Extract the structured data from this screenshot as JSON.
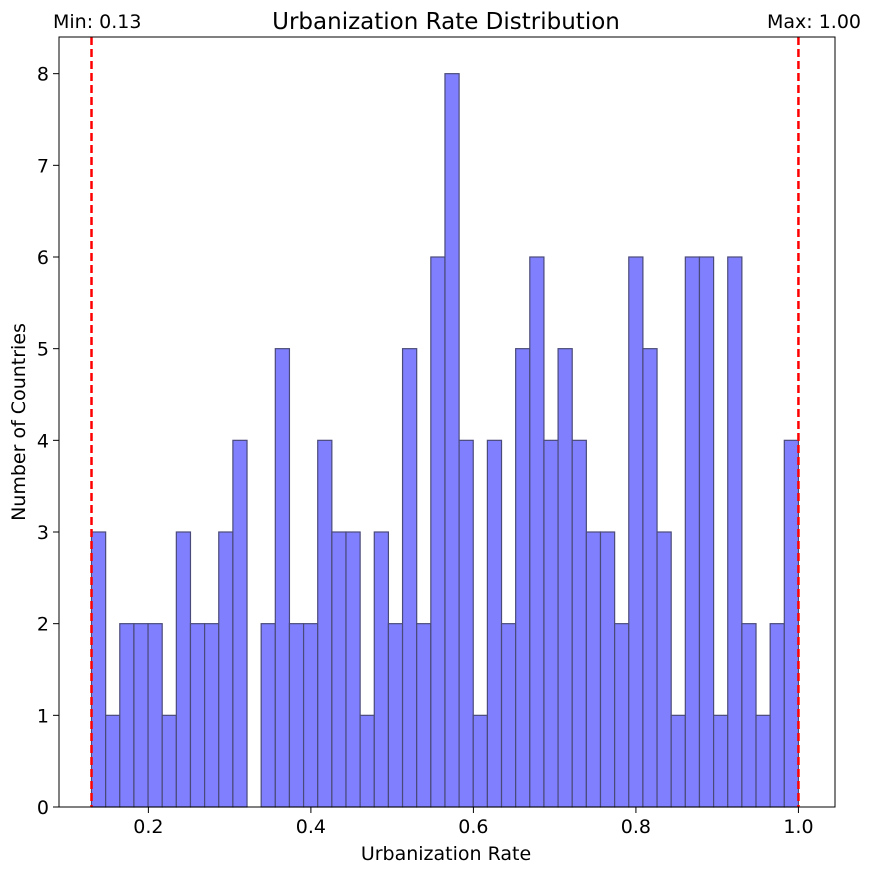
{
  "chart_data": {
    "type": "bar",
    "subtype": "histogram",
    "title": "Urbanization Rate Distribution",
    "xlabel": "Urbanization Rate",
    "ylabel": "Number of Countries",
    "xlim": [
      0.09,
      1.045
    ],
    "ylim": [
      0,
      8.4
    ],
    "xticks": [
      0.2,
      0.4,
      0.6,
      0.8,
      1.0
    ],
    "xtick_labels": [
      "0.2",
      "0.4",
      "0.6",
      "0.8",
      "1.0"
    ],
    "yticks": [
      0,
      1,
      2,
      3,
      4,
      5,
      6,
      7,
      8
    ],
    "ytick_labels": [
      "0",
      "1",
      "2",
      "3",
      "4",
      "5",
      "6",
      "7",
      "8"
    ],
    "bins": {
      "start": 0.13,
      "end": 1.0,
      "count": 50
    },
    "counts": [
      3,
      1,
      2,
      2,
      2,
      1,
      3,
      2,
      2,
      3,
      4,
      0,
      2,
      5,
      2,
      2,
      4,
      3,
      3,
      1,
      3,
      2,
      5,
      2,
      6,
      8,
      4,
      1,
      4,
      2,
      5,
      6,
      4,
      5,
      4,
      3,
      3,
      2,
      6,
      5,
      3,
      1,
      6,
      6,
      1,
      6,
      2,
      1,
      2,
      4
    ],
    "bar_color": "#8080ff",
    "bar_edge_color": "#4a4a7a",
    "grid": false,
    "vlines": [
      {
        "x": 0.13,
        "label": "Min: 0.13",
        "color": "#ff0000",
        "style": "dashed"
      },
      {
        "x": 1.0,
        "label": "Max: 1.00",
        "color": "#ff0000",
        "style": "dashed"
      }
    ]
  }
}
